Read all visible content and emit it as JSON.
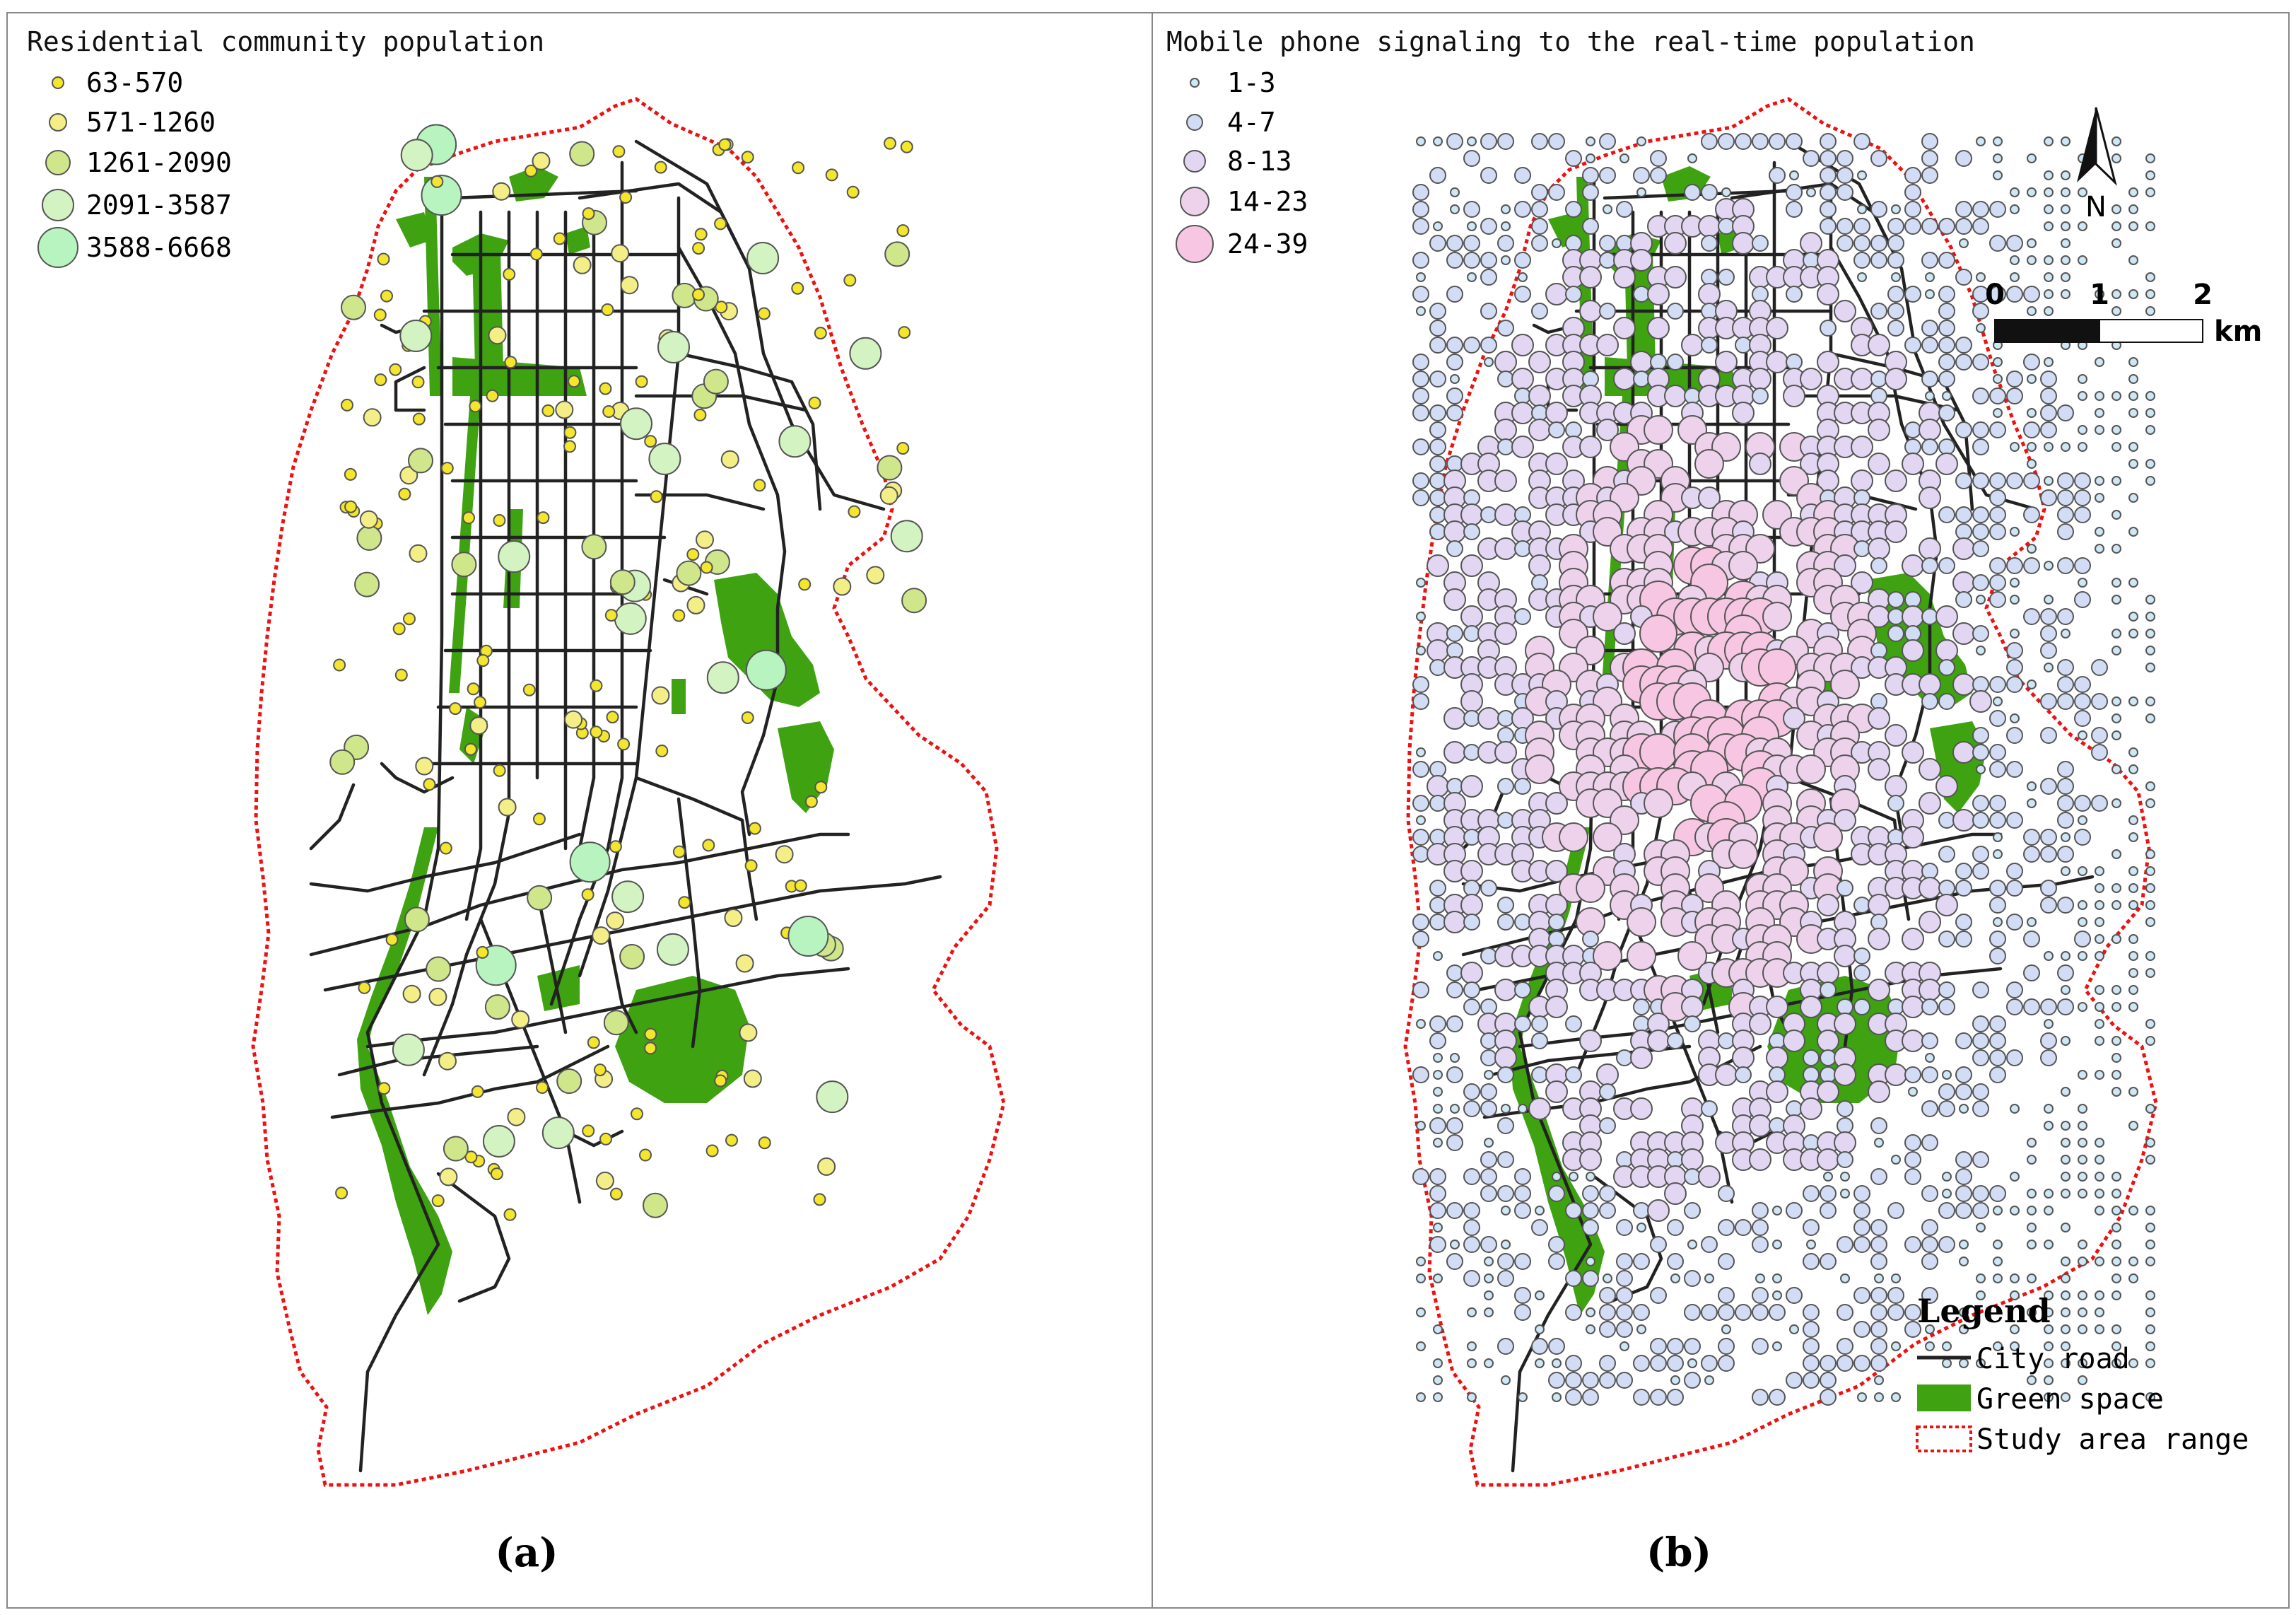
{
  "panel_a": {
    "legend_title": "Residential community population",
    "classes": [
      {
        "label": "63-570",
        "color": "#f3e62c"
      },
      {
        "label": "571-1260",
        "color": "#f4ee86"
      },
      {
        "label": "1261-2090",
        "color": "#cfe68a"
      },
      {
        "label": "2091-3587",
        "color": "#d4f3c2"
      },
      {
        "label": "3588-6668",
        "color": "#b7f4c0"
      }
    ],
    "caption": "(a)"
  },
  "panel_b": {
    "legend_title": "Mobile phone signaling to the real-time population",
    "classes": [
      {
        "label": "1-3",
        "color": "#cfe6f5"
      },
      {
        "label": "4-7",
        "color": "#d3dcf5"
      },
      {
        "label": "8-13",
        "color": "#e3d6f3"
      },
      {
        "label": "14-23",
        "color": "#eed2ec"
      },
      {
        "label": "24-39",
        "color": "#f7c6e2"
      }
    ],
    "caption": "(b)"
  },
  "north_label": "N",
  "scale": {
    "ticks": [
      "0",
      "1",
      "2"
    ],
    "unit": "km"
  },
  "map_legend": {
    "title": "Legend",
    "items": [
      {
        "label": "City road",
        "symbol": "line"
      },
      {
        "label": "Green space",
        "symbol": "fill"
      },
      {
        "label": "Study area range",
        "symbol": "boundary"
      }
    ]
  },
  "colors": {
    "road": "#222222",
    "green_space": "#3ea211",
    "boundary": "#ee1111",
    "frame": "#888888"
  }
}
